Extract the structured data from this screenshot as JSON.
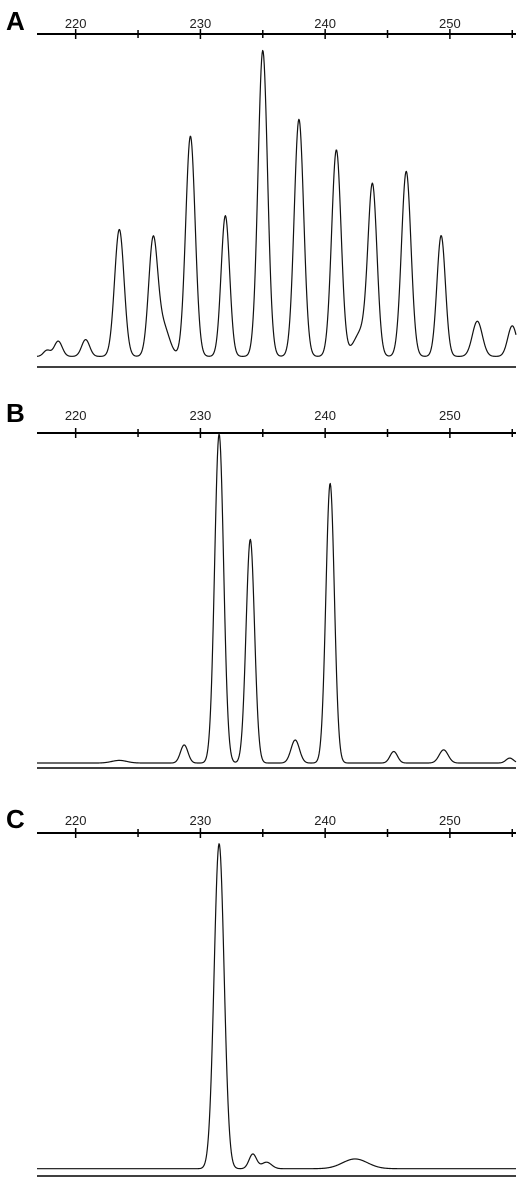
{
  "chart_data": [
    {
      "type": "line",
      "panel_label": "A",
      "title": "",
      "xlabel": "",
      "ylabel": "",
      "xlim": [
        216.9,
        255.3
      ],
      "ylim": [
        0,
        100
      ],
      "x_ticks": [
        220,
        230,
        240,
        250
      ],
      "minor_ticks": [
        225,
        235,
        245,
        255
      ],
      "grid": false,
      "baseline_level": 1.5,
      "peaks": [
        {
          "x": 217.7,
          "y": 2,
          "w": 0.28
        },
        {
          "x": 218.6,
          "y": 5,
          "w": 0.32
        },
        {
          "x": 220.8,
          "y": 5.5,
          "w": 0.32
        },
        {
          "x": 223.5,
          "y": 41.5,
          "w": 0.38
        },
        {
          "x": 226.2,
          "y": 36.5,
          "w": 0.36
        },
        {
          "x": 227.0,
          "y": 10,
          "w": 0.5
        },
        {
          "x": 229.2,
          "y": 72,
          "w": 0.38
        },
        {
          "x": 232.0,
          "y": 46,
          "w": 0.34
        },
        {
          "x": 235.0,
          "y": 100,
          "w": 0.38
        },
        {
          "x": 237.9,
          "y": 77.5,
          "w": 0.38
        },
        {
          "x": 240.9,
          "y": 67.5,
          "w": 0.38
        },
        {
          "x": 243.8,
          "y": 54,
          "w": 0.36
        },
        {
          "x": 242.9,
          "y": 8,
          "w": 0.6
        },
        {
          "x": 246.5,
          "y": 60.5,
          "w": 0.38
        },
        {
          "x": 249.3,
          "y": 39.5,
          "w": 0.34
        },
        {
          "x": 252.2,
          "y": 11.5,
          "w": 0.4
        },
        {
          "x": 255.0,
          "y": 10,
          "w": 0.36
        }
      ]
    },
    {
      "type": "line",
      "panel_label": "B",
      "title": "",
      "xlabel": "",
      "ylabel": "",
      "xlim": [
        216.9,
        255.3
      ],
      "ylim": [
        0,
        100
      ],
      "x_ticks": [
        220,
        230,
        240,
        250
      ],
      "minor_ticks": [
        225,
        235,
        245,
        255
      ],
      "grid": false,
      "baseline_level": 0.6,
      "peaks": [
        {
          "x": 223.5,
          "y": 0.8,
          "w": 0.6
        },
        {
          "x": 228.7,
          "y": 5.5,
          "w": 0.3
        },
        {
          "x": 231.5,
          "y": 100,
          "w": 0.36
        },
        {
          "x": 234.0,
          "y": 68,
          "w": 0.34
        },
        {
          "x": 237.6,
          "y": 7,
          "w": 0.34
        },
        {
          "x": 240.4,
          "y": 85,
          "w": 0.34
        },
        {
          "x": 245.5,
          "y": 3.5,
          "w": 0.3
        },
        {
          "x": 249.5,
          "y": 4,
          "w": 0.36
        },
        {
          "x": 254.8,
          "y": 1.5,
          "w": 0.3
        }
      ]
    },
    {
      "type": "line",
      "panel_label": "C",
      "title": "",
      "xlabel": "",
      "ylabel": "",
      "xlim": [
        216.9,
        255.3
      ],
      "ylim": [
        0,
        100
      ],
      "x_ticks": [
        220,
        230,
        240,
        250
      ],
      "minor_ticks": [
        225,
        235,
        245,
        255
      ],
      "grid": false,
      "baseline_level": 0.4,
      "peaks": [
        {
          "x": 231.5,
          "y": 100,
          "w": 0.4
        },
        {
          "x": 234.2,
          "y": 4.5,
          "w": 0.3
        },
        {
          "x": 235.3,
          "y": 2,
          "w": 0.4
        },
        {
          "x": 242.4,
          "y": 3,
          "w": 1.0
        }
      ]
    }
  ]
}
